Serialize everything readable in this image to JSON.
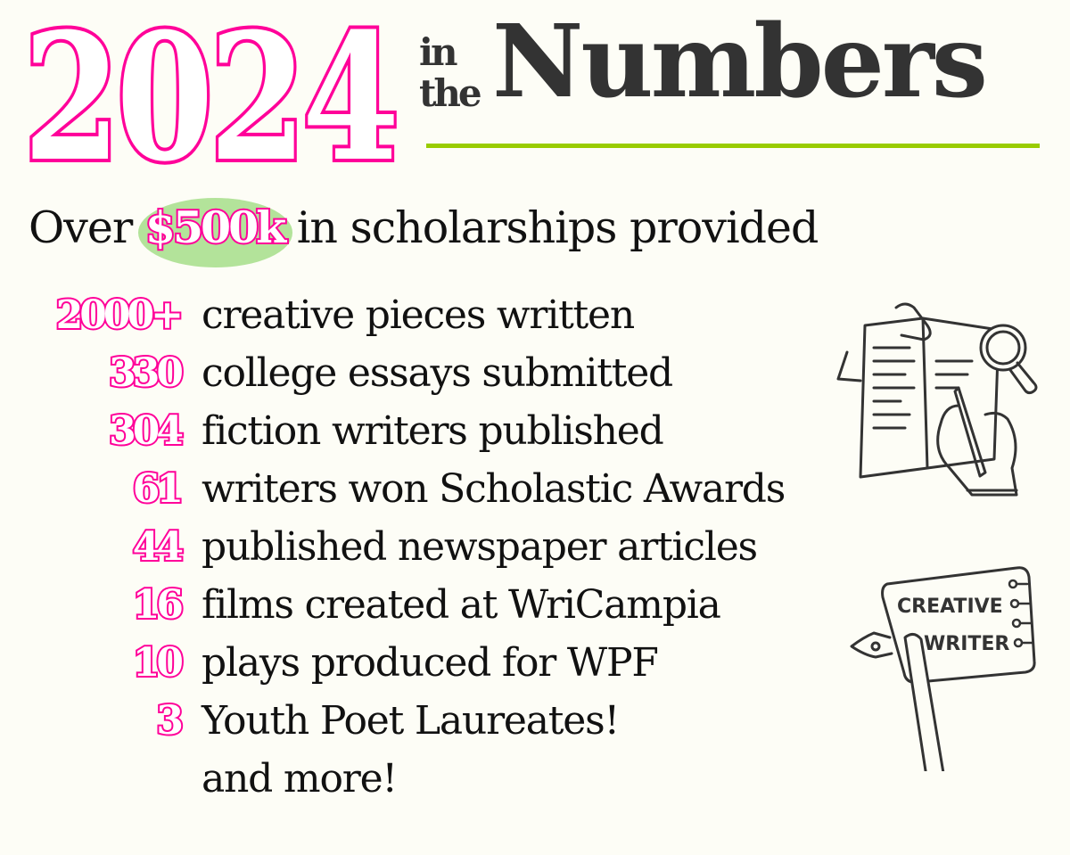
{
  "header": {
    "year": "2024",
    "in_the_1": "in",
    "in_the_2": "the",
    "title": "Numbers"
  },
  "headline": {
    "prefix": "Over",
    "highlight": "$500k",
    "suffix": "in scholarships provided"
  },
  "stats": [
    {
      "number": "2000+",
      "label": "creative pieces written"
    },
    {
      "number": "330",
      "label": "college essays submitted"
    },
    {
      "number": "304",
      "label": "fiction writers published"
    },
    {
      "number": "61",
      "label": "writers won Scholastic Awards"
    },
    {
      "number": "44",
      "label": "published newspaper articles"
    },
    {
      "number": "16",
      "label": "films created at WriCampia"
    },
    {
      "number": "10",
      "label": "plays produced for WPF"
    },
    {
      "number": "3",
      "label": "Youth Poet Laureates!"
    },
    {
      "number": "",
      "label": "and more!"
    }
  ],
  "illustrations": {
    "reading_icon": "hand-writing-notebook-magnifier",
    "badge_icon": "creative-writer-notepad",
    "badge_line1": "CREATIVE",
    "badge_line2": "WRITER"
  },
  "colors": {
    "pink": "#ff0099",
    "green_rule": "#99cc00",
    "green_highlight": "#b3e39a",
    "title_gray": "#333333",
    "background": "#fdfdf6"
  }
}
